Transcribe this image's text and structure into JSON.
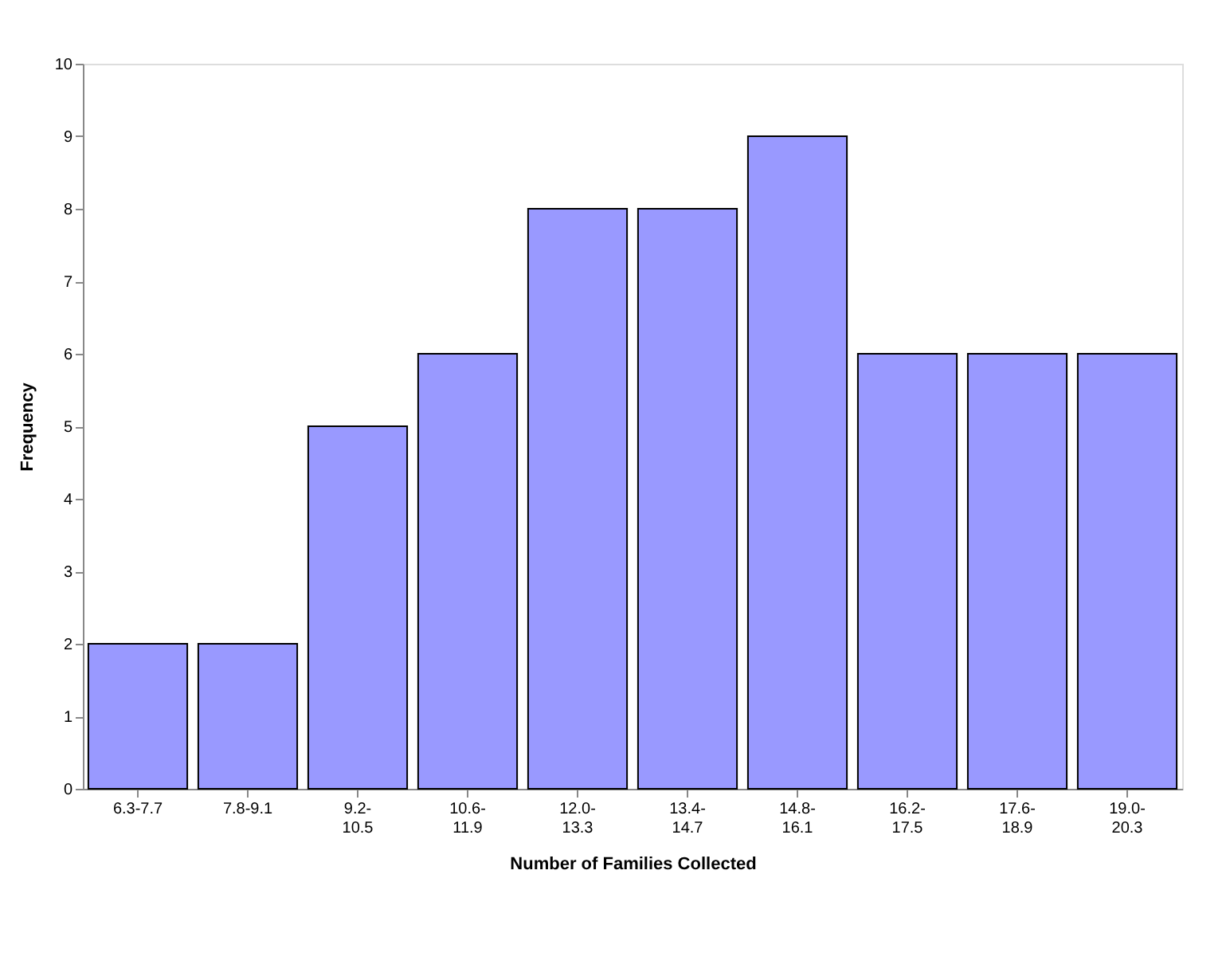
{
  "chart_data": {
    "type": "bar",
    "xlabel": "Number of Families Collected",
    "ylabel": "Frequency",
    "categories": [
      "6.3-7.7",
      "7.8-9.1",
      "9.2-10.5",
      "10.6-11.9",
      "12.0-13.3",
      "13.4-14.7",
      "14.8-16.1",
      "16.2-17.5",
      "17.6-18.9",
      "19.0-20.3"
    ],
    "values": [
      2,
      2,
      5,
      6,
      8,
      8,
      9,
      6,
      6,
      6
    ],
    "color": "#9999ff",
    "ylim": [
      0,
      10
    ],
    "yticks": [
      0,
      1,
      2,
      3,
      4,
      5,
      6,
      7,
      8,
      9,
      10
    ],
    "grid": false,
    "legend": false
  }
}
